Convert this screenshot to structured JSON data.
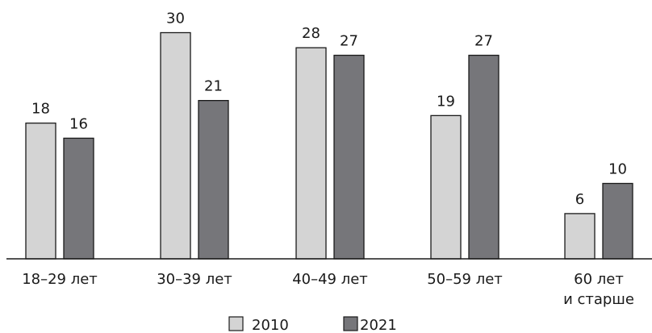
{
  "chart_data": {
    "type": "bar",
    "categories": [
      [
        "18–29 лет"
      ],
      [
        "30–39 лет"
      ],
      [
        "40–49 лет"
      ],
      [
        "50–59 лет"
      ],
      [
        "60 лет",
        "и старше"
      ]
    ],
    "series": [
      {
        "name": "2010",
        "values": [
          18,
          30,
          28,
          19,
          6
        ],
        "color": "#d4d4d4"
      },
      {
        "name": "2021",
        "values": [
          16,
          21,
          27,
          27,
          10
        ],
        "color": "#76767a"
      }
    ],
    "title": "",
    "xlabel": "",
    "ylabel": "",
    "ylim": [
      0,
      30
    ],
    "grid": false,
    "legend_position": "bottom-center",
    "bar_outline_color": "#1a1a1a"
  }
}
